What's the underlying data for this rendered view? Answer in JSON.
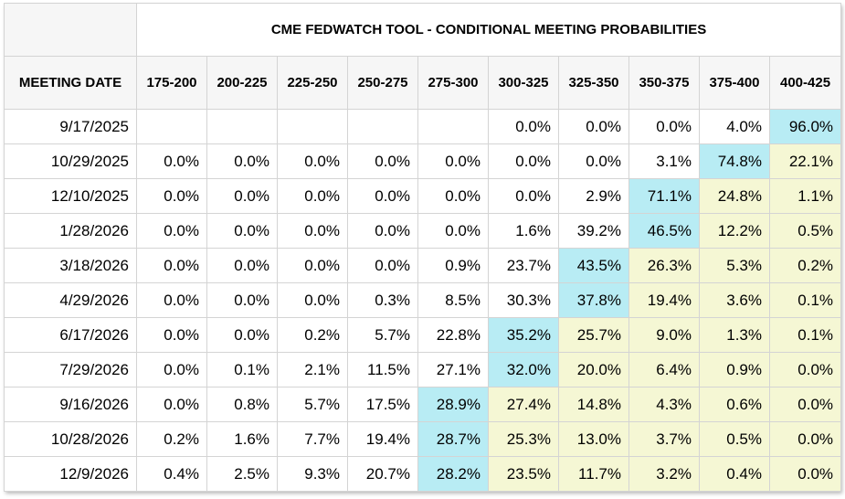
{
  "chart_data": {
    "type": "table",
    "title": "CME FEDWATCH TOOL - CONDITIONAL MEETING PROBABILITIES",
    "row_header": "MEETING DATE",
    "columns": [
      "175-200",
      "200-225",
      "225-250",
      "250-275",
      "275-300",
      "300-325",
      "325-350",
      "350-375",
      "375-400",
      "400-425"
    ],
    "colors": {
      "highest_probability": "#b8ecf4",
      "above_highest": "#f5f7d4",
      "header_bg": "#f6f6f6",
      "grid": "#d4d4d4"
    },
    "rows": [
      {
        "date": "9/17/2025",
        "values": [
          "",
          "",
          "",
          "",
          "",
          "0.0%",
          "0.0%",
          "0.0%",
          "4.0%",
          "96.0%"
        ],
        "max_index": 9
      },
      {
        "date": "10/29/2025",
        "values": [
          "0.0%",
          "0.0%",
          "0.0%",
          "0.0%",
          "0.0%",
          "0.0%",
          "0.0%",
          "3.1%",
          "74.8%",
          "22.1%"
        ],
        "max_index": 8
      },
      {
        "date": "12/10/2025",
        "values": [
          "0.0%",
          "0.0%",
          "0.0%",
          "0.0%",
          "0.0%",
          "0.0%",
          "2.9%",
          "71.1%",
          "24.8%",
          "1.1%"
        ],
        "max_index": 7
      },
      {
        "date": "1/28/2026",
        "values": [
          "0.0%",
          "0.0%",
          "0.0%",
          "0.0%",
          "0.0%",
          "1.6%",
          "39.2%",
          "46.5%",
          "12.2%",
          "0.5%"
        ],
        "max_index": 7
      },
      {
        "date": "3/18/2026",
        "values": [
          "0.0%",
          "0.0%",
          "0.0%",
          "0.0%",
          "0.9%",
          "23.7%",
          "43.5%",
          "26.3%",
          "5.3%",
          "0.2%"
        ],
        "max_index": 6
      },
      {
        "date": "4/29/2026",
        "values": [
          "0.0%",
          "0.0%",
          "0.0%",
          "0.3%",
          "8.5%",
          "30.3%",
          "37.8%",
          "19.4%",
          "3.6%",
          "0.1%"
        ],
        "max_index": 6
      },
      {
        "date": "6/17/2026",
        "values": [
          "0.0%",
          "0.0%",
          "0.2%",
          "5.7%",
          "22.8%",
          "35.2%",
          "25.7%",
          "9.0%",
          "1.3%",
          "0.1%"
        ],
        "max_index": 5
      },
      {
        "date": "7/29/2026",
        "values": [
          "0.0%",
          "0.1%",
          "2.1%",
          "11.5%",
          "27.1%",
          "32.0%",
          "20.0%",
          "6.4%",
          "0.9%",
          "0.0%"
        ],
        "max_index": 5
      },
      {
        "date": "9/16/2026",
        "values": [
          "0.0%",
          "0.8%",
          "5.7%",
          "17.5%",
          "28.9%",
          "27.4%",
          "14.8%",
          "4.3%",
          "0.6%",
          "0.0%"
        ],
        "max_index": 4
      },
      {
        "date": "10/28/2026",
        "values": [
          "0.2%",
          "1.6%",
          "7.7%",
          "19.4%",
          "28.7%",
          "25.3%",
          "13.0%",
          "3.7%",
          "0.5%",
          "0.0%"
        ],
        "max_index": 4
      },
      {
        "date": "12/9/2026",
        "values": [
          "0.4%",
          "2.5%",
          "9.3%",
          "20.7%",
          "28.2%",
          "23.5%",
          "11.7%",
          "3.2%",
          "0.4%",
          "0.0%"
        ],
        "max_index": 4
      }
    ]
  }
}
